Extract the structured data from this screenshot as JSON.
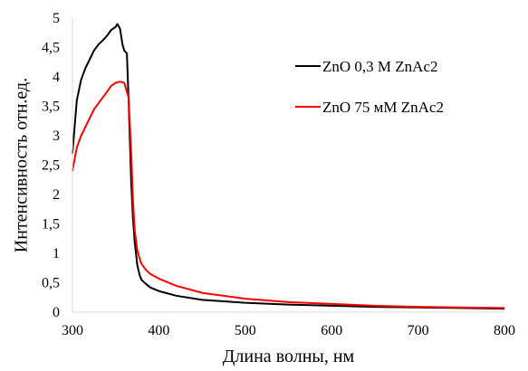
{
  "chart_data": {
    "type": "line",
    "title": "",
    "xlabel": "Длина волны, нм",
    "ylabel": "Интенсивность отн.ед.",
    "xlim": [
      300,
      800
    ],
    "ylim": [
      0,
      5
    ],
    "x_ticks": [
      300,
      400,
      500,
      600,
      700,
      800
    ],
    "y_ticks": [
      0,
      0.5,
      1,
      1.5,
      2,
      2.5,
      3,
      3.5,
      4,
      4.5,
      5
    ],
    "y_tick_labels": [
      "0",
      "0,5",
      "1",
      "1,5",
      "2",
      "2,5",
      "3",
      "3,5",
      "4",
      "4,5",
      "5"
    ],
    "grid": false,
    "legend_position": "upper-right",
    "series": [
      {
        "name": "ZnO 0,3 M ZnAc2",
        "color": "#000000",
        "x": [
          300,
          305,
          310,
          315,
          320,
          325,
          330,
          335,
          340,
          345,
          350,
          352,
          355,
          358,
          360,
          363,
          365,
          368,
          370,
          372,
          375,
          378,
          380,
          385,
          390,
          400,
          420,
          450,
          500,
          550,
          600,
          650,
          700,
          750,
          800
        ],
        "y": [
          2.7,
          3.6,
          3.95,
          4.15,
          4.3,
          4.45,
          4.55,
          4.62,
          4.7,
          4.8,
          4.85,
          4.9,
          4.82,
          4.55,
          4.45,
          4.4,
          3.6,
          2.2,
          1.6,
          1.2,
          0.8,
          0.62,
          0.55,
          0.48,
          0.42,
          0.36,
          0.28,
          0.21,
          0.16,
          0.13,
          0.11,
          0.09,
          0.08,
          0.07,
          0.06
        ]
      },
      {
        "name": "ZnO 75 мМ ZnAc2",
        "color": "#ff0000",
        "x": [
          300,
          305,
          310,
          315,
          320,
          325,
          330,
          335,
          340,
          345,
          350,
          355,
          360,
          363,
          365,
          368,
          370,
          372,
          375,
          378,
          380,
          385,
          390,
          400,
          420,
          450,
          500,
          550,
          600,
          650,
          700,
          750,
          800
        ],
        "y": [
          2.4,
          2.8,
          3.0,
          3.15,
          3.3,
          3.45,
          3.55,
          3.65,
          3.75,
          3.85,
          3.9,
          3.92,
          3.9,
          3.75,
          3.65,
          2.7,
          1.9,
          1.4,
          1.05,
          0.9,
          0.82,
          0.72,
          0.65,
          0.57,
          0.45,
          0.33,
          0.23,
          0.17,
          0.14,
          0.11,
          0.09,
          0.08,
          0.07
        ]
      }
    ]
  }
}
